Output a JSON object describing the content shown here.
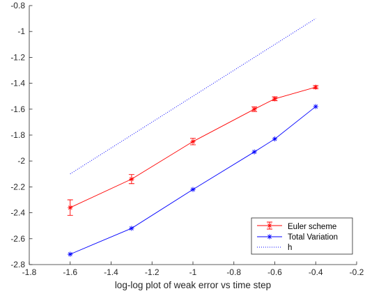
{
  "chart_data": {
    "type": "line",
    "title": "",
    "xlabel": "log-log plot of weak error vs time step",
    "ylabel": "",
    "xlim": [
      -1.8,
      -0.2
    ],
    "ylim": [
      -2.8,
      -0.8
    ],
    "xticks": [
      -1.8,
      -1.6,
      -1.4,
      -1.2,
      -1,
      -0.8,
      -0.6,
      -0.4,
      -0.2
    ],
    "yticks": [
      -2.8,
      -2.6,
      -2.4,
      -2.2,
      -2,
      -1.8,
      -1.6,
      -1.4,
      -1.2,
      -1,
      -0.8
    ],
    "xtick_labels": [
      "-1.8",
      "-1.6",
      "-1.4",
      "-1.2",
      "-1",
      "-0.8",
      "-0.6",
      "-0.4",
      "-0.2"
    ],
    "ytick_labels": [
      "-2.8",
      "-2.6",
      "-2.4",
      "-2.2",
      "-2",
      "-1.8",
      "-1.6",
      "-1.4",
      "-1.2",
      "-1",
      "-0.8"
    ],
    "grid": false,
    "legend_position": "bottom-right",
    "series": [
      {
        "name": "Euler scheme",
        "color": "#ff0000",
        "line_style": "solid",
        "marker": "asterisk",
        "error_bars": true,
        "x": [
          -1.6,
          -1.3,
          -1.0,
          -0.7,
          -0.6,
          -0.4
        ],
        "y": [
          -2.36,
          -2.14,
          -1.85,
          -1.6,
          -1.52,
          -1.43
        ],
        "err": [
          0.06,
          0.035,
          0.025,
          0.018,
          0.015,
          0.012
        ]
      },
      {
        "name": "Total Variation",
        "color": "#0000ff",
        "line_style": "solid",
        "marker": "asterisk",
        "error_bars": false,
        "x": [
          -1.6,
          -1.3,
          -1.0,
          -0.7,
          -0.6,
          -0.4
        ],
        "y": [
          -2.72,
          -2.52,
          -2.22,
          -1.93,
          -1.83,
          -1.58
        ]
      },
      {
        "name": "h",
        "color": "#0000ff",
        "line_style": "dotted",
        "marker": "none",
        "error_bars": false,
        "x": [
          -1.6,
          -0.4
        ],
        "y": [
          -2.1,
          -0.9
        ]
      }
    ]
  }
}
